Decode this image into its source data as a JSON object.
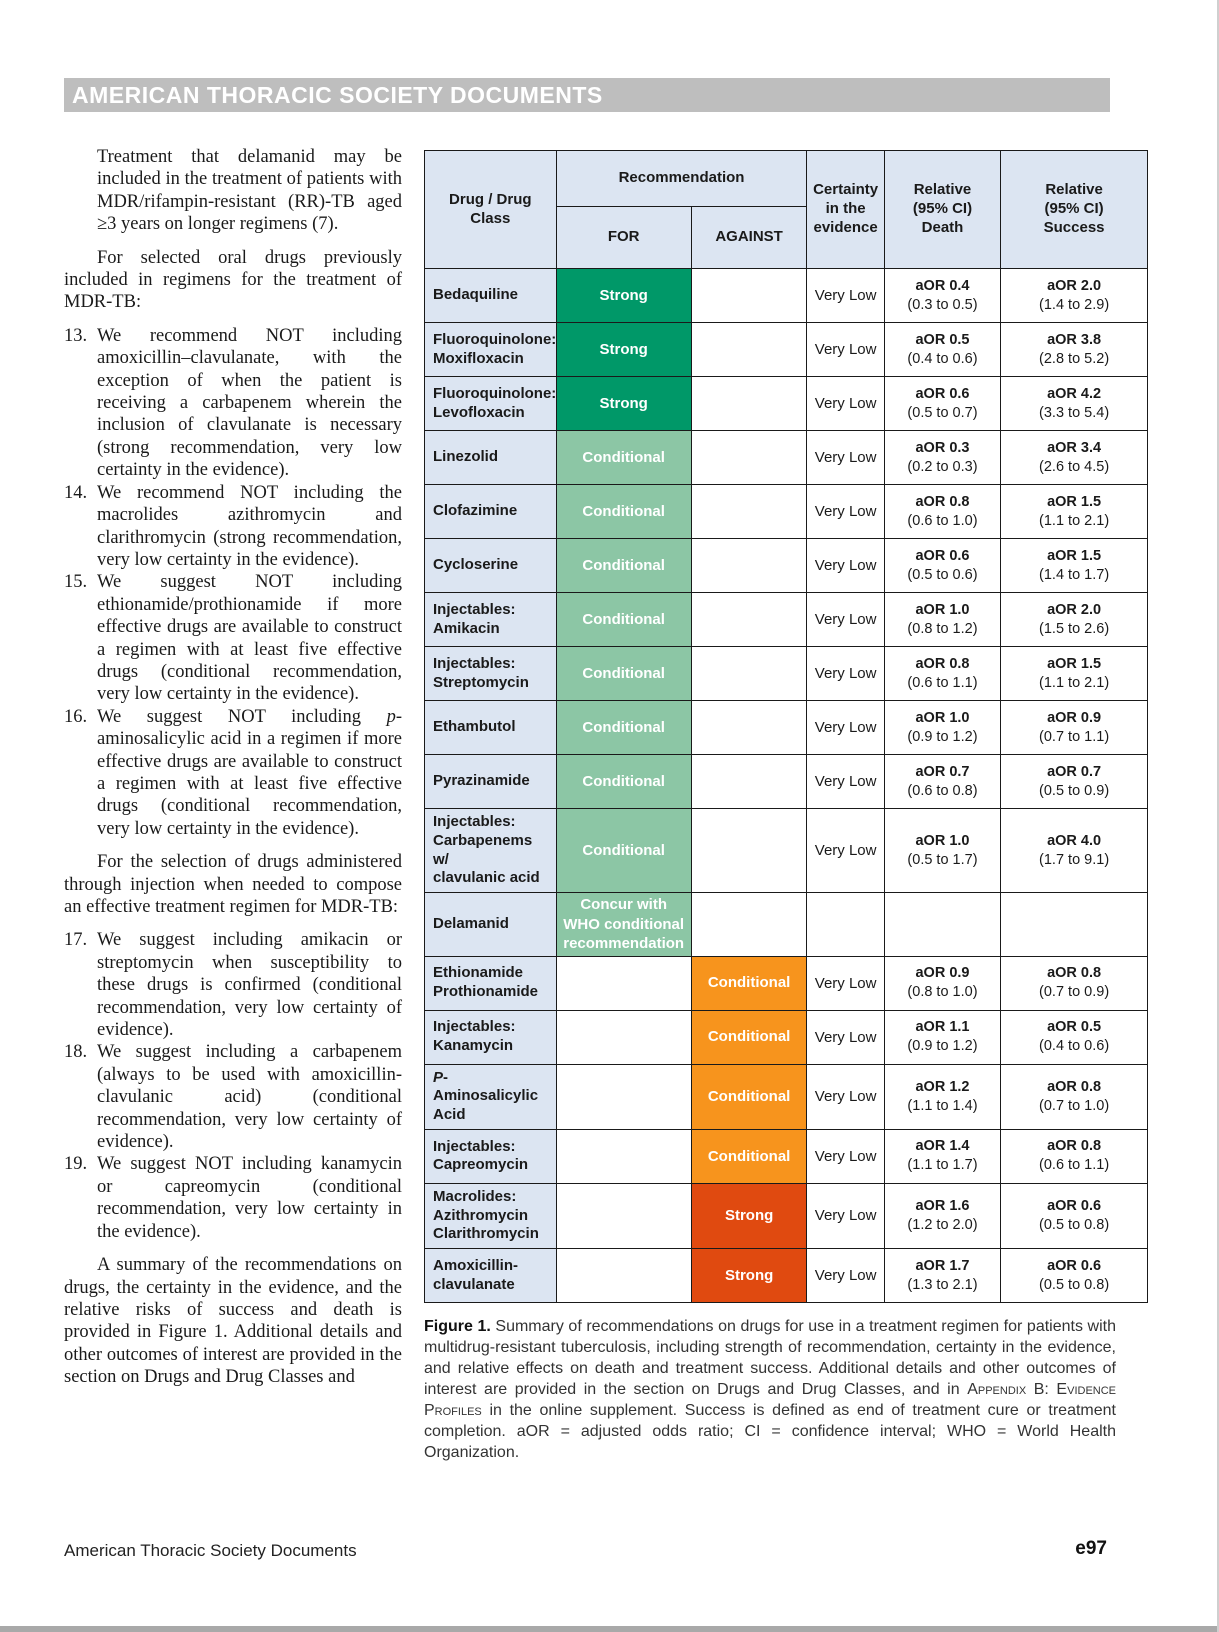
{
  "page": {
    "banner": "AMERICAN THORACIC SOCIETY DOCUMENTS",
    "footer_left": "American Thoracic Society Documents",
    "footer_right": "e97"
  },
  "left_column": {
    "blocks": [
      {
        "type": "cont",
        "text": "Treatment that delamanid may be included in the treatment of patients with MDR/rifampin-resistant (RR)-TB aged ≥3 years on longer regimens (7)."
      },
      {
        "type": "p",
        "text": "For selected oral drugs previously included in regimens for the treatment of MDR-TB:"
      },
      {
        "type": "li",
        "num": "13.",
        "text": "We recommend NOT including amoxicillin–clavulanate, with the exception of when the patient is receiving a carbapenem wherein the inclusion of clavulanate is necessary (strong recommendation, very low certainty in the evidence)."
      },
      {
        "type": "li",
        "num": "14.",
        "text": "We recommend NOT including the macrolides azithromycin and clarithromycin (strong recommendation, very low certainty in the evidence)."
      },
      {
        "type": "li",
        "num": "15.",
        "text": "We suggest NOT including ethionamide/prothionamide if more effective drugs are available to construct a regimen with at least five effective drugs (conditional recommendation, very low certainty in the evidence)."
      },
      {
        "type": "li",
        "num": "16.",
        "text": "We suggest NOT including *p*-aminosalicylic acid in a regimen if more effective drugs are available to construct a regimen with at least five effective drugs (conditional recommendation, very low certainty in the evidence)."
      },
      {
        "type": "p",
        "text": "For the selection of drugs administered through injection when needed to compose an effective treatment regimen for MDR-TB:"
      },
      {
        "type": "li",
        "num": "17.",
        "text": "We suggest including amikacin or streptomycin when susceptibility to these drugs is confirmed (conditional recommendation, very low certainty of evidence)."
      },
      {
        "type": "li",
        "num": "18.",
        "text": "We suggest including a carbapenem (always to be used with amoxicillin-clavulanic acid) (conditional recommendation, very low certainty of evidence)."
      },
      {
        "type": "li",
        "num": "19.",
        "text": "We suggest NOT including kanamycin or capreomycin (conditional recommendation, very low certainty in the evidence)."
      },
      {
        "type": "p",
        "text": "A summary of the recommendations on drugs, the certainty in the evidence, and the relative risks of success and death is provided in Figure 1. Additional details and other outcomes of interest are provided in the section on Drugs and Drug Classes and"
      }
    ]
  },
  "figure": {
    "table": {
      "header": {
        "drug": "Drug / Drug\nClass",
        "recommendation": "Recommendation",
        "for": "FOR",
        "against": "AGAINST",
        "certainty": "Certainty\nin the\nevidence",
        "death": "Relative\n(95% CI)\nDeath",
        "success": "Relative\n(95% CI)\nSuccess"
      },
      "rows": [
        {
          "drug": "Bedaquiline",
          "rec": {
            "side": "for",
            "strength": "strong",
            "label": "Strong"
          },
          "certainty": "Very Low",
          "death": {
            "aor": "aOR 0.4",
            "ci": "(0.3 to 0.5)"
          },
          "success": {
            "aor": "aOR 2.0",
            "ci": "(1.4 to 2.9)"
          }
        },
        {
          "drug": "Fluoroquinolone:\nMoxifloxacin",
          "rec": {
            "side": "for",
            "strength": "strong",
            "label": "Strong"
          },
          "certainty": "Very Low",
          "death": {
            "aor": "aOR 0.5",
            "ci": "(0.4 to 0.6)"
          },
          "success": {
            "aor": "aOR 3.8",
            "ci": "(2.8 to 5.2)"
          }
        },
        {
          "drug": "Fluoroquinolone:\nLevofloxacin",
          "rec": {
            "side": "for",
            "strength": "strong",
            "label": "Strong"
          },
          "certainty": "Very Low",
          "death": {
            "aor": "aOR 0.6",
            "ci": "(0.5 to 0.7)"
          },
          "success": {
            "aor": "aOR 4.2",
            "ci": "(3.3 to 5.4)"
          }
        },
        {
          "drug": "Linezolid",
          "rec": {
            "side": "for",
            "strength": "conditional",
            "label": "Conditional"
          },
          "certainty": "Very Low",
          "death": {
            "aor": "aOR 0.3",
            "ci": "(0.2 to 0.3)"
          },
          "success": {
            "aor": "aOR 3.4",
            "ci": "(2.6 to 4.5)"
          }
        },
        {
          "drug": "Clofazimine",
          "rec": {
            "side": "for",
            "strength": "conditional",
            "label": "Conditional"
          },
          "certainty": "Very Low",
          "death": {
            "aor": "aOR 0.8",
            "ci": "(0.6 to 1.0)"
          },
          "success": {
            "aor": "aOR 1.5",
            "ci": "(1.1 to 2.1)"
          }
        },
        {
          "drug": "Cycloserine",
          "rec": {
            "side": "for",
            "strength": "conditional",
            "label": "Conditional"
          },
          "certainty": "Very Low",
          "death": {
            "aor": "aOR 0.6",
            "ci": "(0.5 to 0.6)"
          },
          "success": {
            "aor": "aOR 1.5",
            "ci": "(1.4 to 1.7)"
          }
        },
        {
          "drug": "Injectables:\nAmikacin",
          "rec": {
            "side": "for",
            "strength": "conditional",
            "label": "Conditional"
          },
          "certainty": "Very Low",
          "death": {
            "aor": "aOR 1.0",
            "ci": "(0.8 to 1.2)"
          },
          "success": {
            "aor": "aOR 2.0",
            "ci": "(1.5 to 2.6)"
          }
        },
        {
          "drug": "Injectables:\nStreptomycin",
          "rec": {
            "side": "for",
            "strength": "conditional",
            "label": "Conditional"
          },
          "certainty": "Very Low",
          "death": {
            "aor": "aOR 0.8",
            "ci": "(0.6 to 1.1)"
          },
          "success": {
            "aor": "aOR 1.5",
            "ci": "(1.1 to 2.1)"
          }
        },
        {
          "drug": "Ethambutol",
          "rec": {
            "side": "for",
            "strength": "conditional",
            "label": "Conditional"
          },
          "certainty": "Very Low",
          "death": {
            "aor": "aOR 1.0",
            "ci": "(0.9 to 1.2)"
          },
          "success": {
            "aor": "aOR 0.9",
            "ci": "(0.7 to 1.1)"
          }
        },
        {
          "drug": "Pyrazinamide",
          "rec": {
            "side": "for",
            "strength": "conditional",
            "label": "Conditional"
          },
          "certainty": "Very Low",
          "death": {
            "aor": "aOR 0.7",
            "ci": "(0.6 to 0.8)"
          },
          "success": {
            "aor": "aOR 0.7",
            "ci": "(0.5 to 0.9)"
          }
        },
        {
          "drug": "Injectables:\nCarbapenems w/\nclavulanic acid",
          "rec": {
            "side": "for",
            "strength": "conditional",
            "label": "Conditional"
          },
          "certainty": "Very Low",
          "death": {
            "aor": "aOR 1.0",
            "ci": "(0.5 to 1.7)"
          },
          "success": {
            "aor": "aOR 4.0",
            "ci": "(1.7 to 9.1)"
          }
        },
        {
          "drug": "Delamanid",
          "rec": {
            "side": "for",
            "strength": "concur",
            "label": "Concur with\nWHO conditional\nrecommendation"
          },
          "certainty": "",
          "death": null,
          "success": null
        },
        {
          "drug": "Ethionamide\nProthionamide",
          "rec": {
            "side": "against",
            "strength": "conditional",
            "label": "Conditional"
          },
          "certainty": "Very Low",
          "death": {
            "aor": "aOR 0.9",
            "ci": "(0.8 to 1.0)"
          },
          "success": {
            "aor": "aOR 0.8",
            "ci": "(0.7 to 0.9)"
          }
        },
        {
          "drug": "Injectables:\nKanamycin",
          "rec": {
            "side": "against",
            "strength": "conditional",
            "label": "Conditional"
          },
          "certainty": "Very Low",
          "death": {
            "aor": "aOR 1.1",
            "ci": "(0.9 to 1.2)"
          },
          "success": {
            "aor": "aOR 0.5",
            "ci": "(0.4 to 0.6)"
          }
        },
        {
          "drug": "*P*-Aminosalicylic\nAcid",
          "rec": {
            "side": "against",
            "strength": "conditional",
            "label": "Conditional"
          },
          "certainty": "Very Low",
          "death": {
            "aor": "aOR 1.2",
            "ci": "(1.1 to 1.4)"
          },
          "success": {
            "aor": "aOR 0.8",
            "ci": "(0.7 to 1.0)"
          }
        },
        {
          "drug": "Injectables:\nCapreomycin",
          "rec": {
            "side": "against",
            "strength": "conditional",
            "label": "Conditional"
          },
          "certainty": "Very Low",
          "death": {
            "aor": "aOR 1.4",
            "ci": "(1.1 to 1.7)"
          },
          "success": {
            "aor": "aOR 0.8",
            "ci": "(0.6 to 1.1)"
          }
        },
        {
          "drug": "Macrolides:\nAzithromycin\nClarithromycin",
          "rec": {
            "side": "against",
            "strength": "strong",
            "label": "Strong"
          },
          "certainty": "Very Low",
          "death": {
            "aor": "aOR 1.6",
            "ci": "(1.2 to 2.0)"
          },
          "success": {
            "aor": "aOR 0.6",
            "ci": "(0.5 to 0.8)"
          }
        },
        {
          "drug": "Amoxicillin-\nclavulanate",
          "rec": {
            "side": "against",
            "strength": "strong",
            "label": "Strong"
          },
          "certainty": "Very Low",
          "death": {
            "aor": "aOR 1.7",
            "ci": "(1.3 to 2.1)"
          },
          "success": {
            "aor": "aOR 0.6",
            "ci": "(0.5 to 0.8)"
          }
        }
      ]
    },
    "caption": {
      "lead": "Figure 1.",
      "parts": [
        {
          "text": "Summary of recommendations on drugs for use in a treatment regimen for patients with multidrug-resistant tuberculosis, including strength of recommendation, certainty in the evidence, and relative effects on death and treatment success. Additional details and other outcomes of interest are provided in the section on Drugs and Drug Classes, and in "
        },
        {
          "text": "Appendix B: Evidence Profiles",
          "smallcaps": true
        },
        {
          "text": " in the online supplement. Success is defined as end of treatment cure or treatment completion. aOR = adjusted odds ratio; CI = confidence interval; WHO = World Health Organization."
        }
      ]
    }
  },
  "colors": {
    "banner_bg": "#BEBEBE",
    "header_bg": "#DCE5F2",
    "label_bg": "#DCE5F2",
    "for_strong": "#009868",
    "for_conditional": "#8CC6A5",
    "against_conditional": "#F7941D",
    "against_strong": "#E04A10",
    "border": "#1A1A1A",
    "text": "#1A1A1A"
  }
}
